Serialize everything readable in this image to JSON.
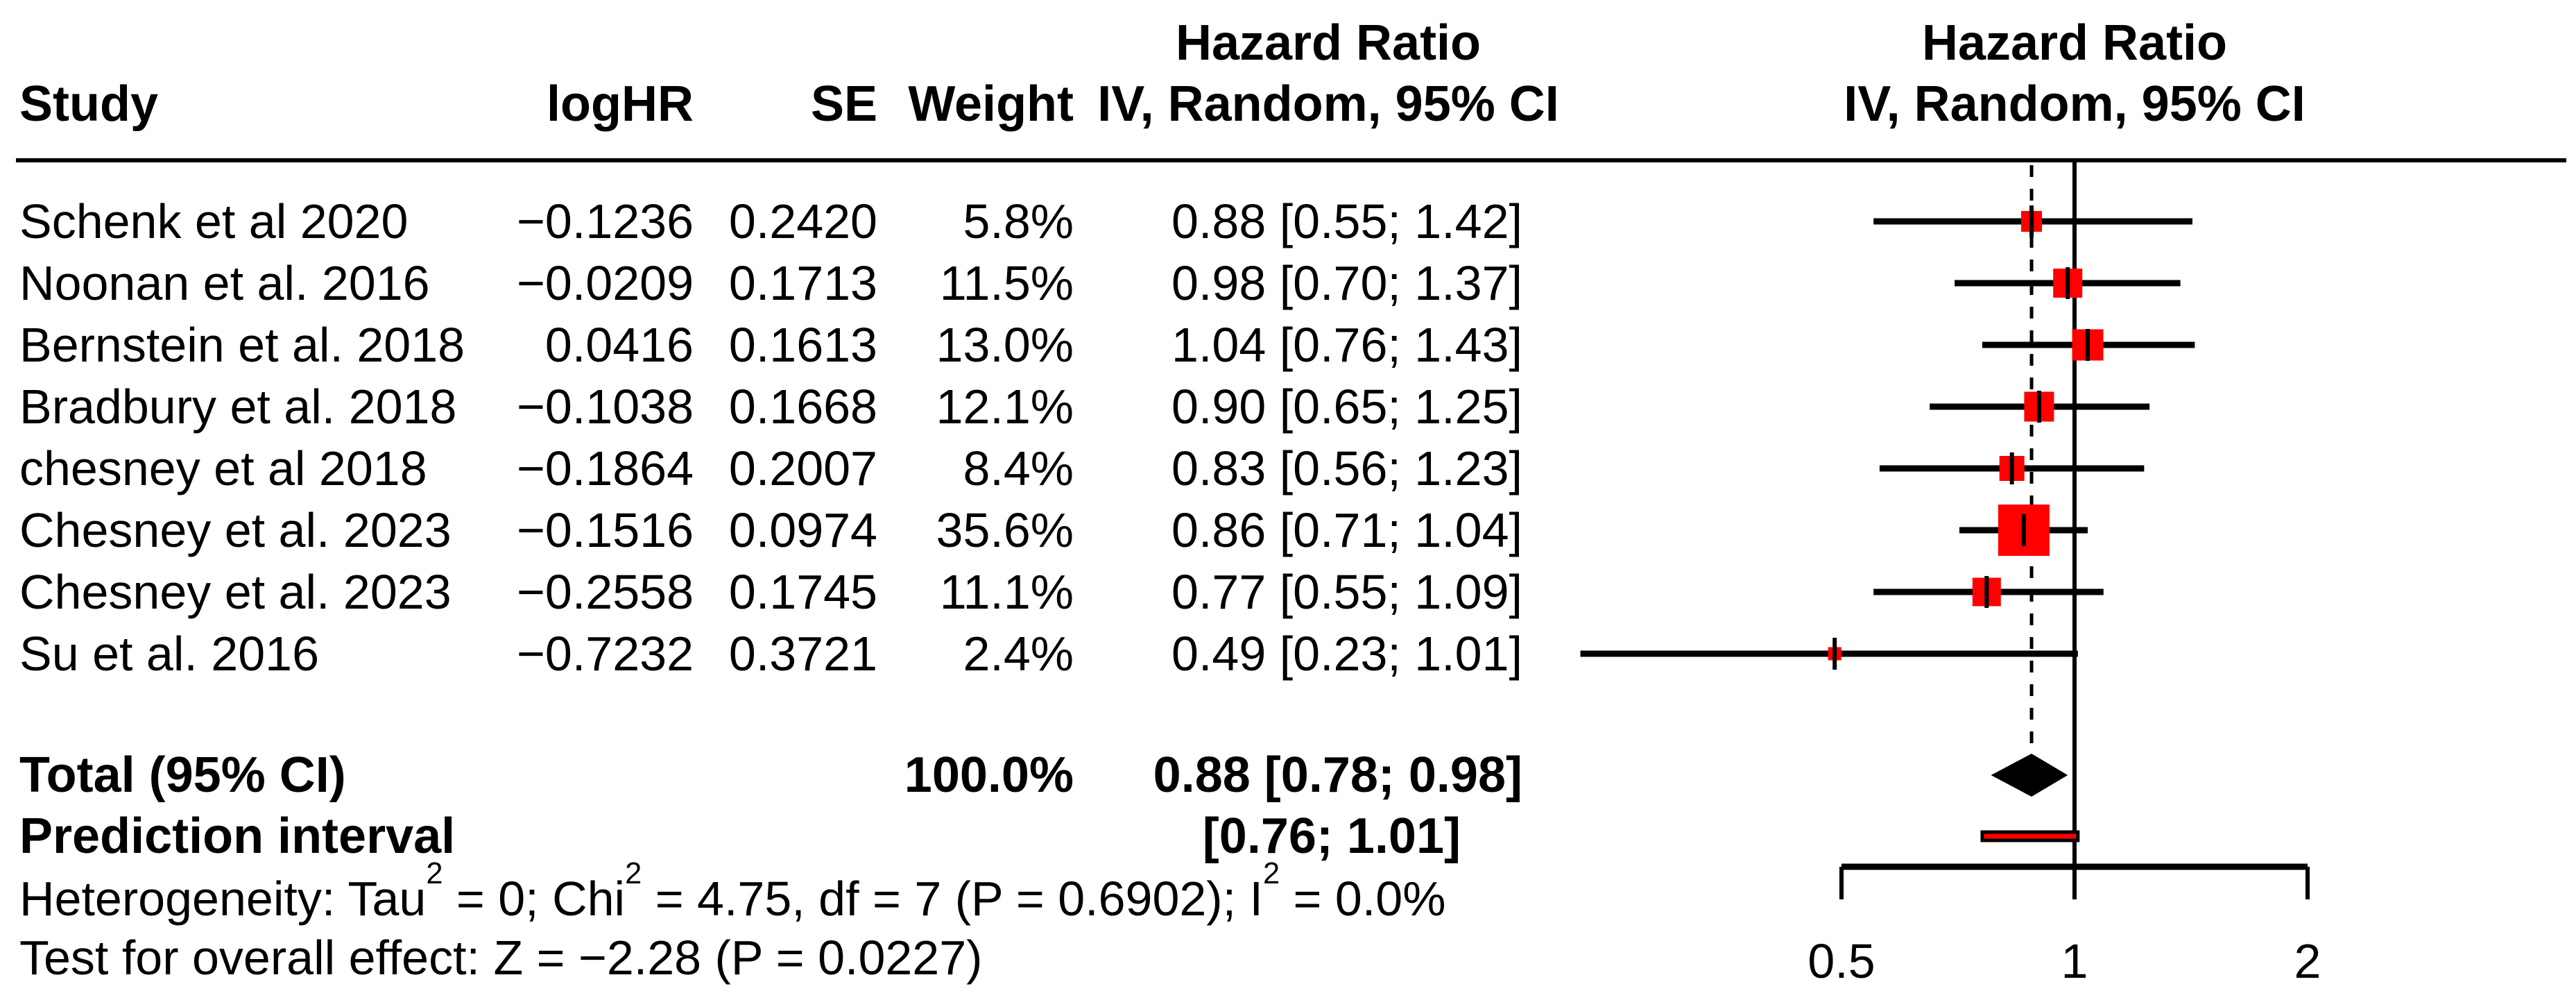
{
  "table": {
    "effect_header": "Hazard Ratio",
    "model_header": "IV, Random, 95% CI",
    "columns": {
      "study": "Study",
      "loghr": "logHR",
      "se": "SE",
      "weight": "Weight",
      "ci": "IV, Random, 95% CI"
    }
  },
  "colors": {
    "square": "#FF0000",
    "prediction_bar_fill": "#FF0000",
    "line": "#000000",
    "diamond": "#000000",
    "text": "#000000"
  },
  "chart_data": {
    "type": "forest",
    "effect_measure": "Hazard Ratio",
    "model": "IV, Random, 95% CI",
    "x_scale": "log",
    "axis_ticks": [
      0.5,
      1,
      2
    ],
    "axis_tick_labels": [
      "0.5",
      "1",
      "2"
    ],
    "reference_line": 1,
    "studies": [
      {
        "name": "Schenk et al 2020",
        "loghr": "−0.1236",
        "se": "0.2420",
        "weight_pct": 5.8,
        "weight": "5.8%",
        "hr": 0.88,
        "ci_low": 0.55,
        "ci_high": 1.42,
        "ci_text": "0.88 [0.55; 1.42]"
      },
      {
        "name": "Noonan et al. 2016",
        "loghr": "−0.0209",
        "se": "0.1713",
        "weight_pct": 11.5,
        "weight": "11.5%",
        "hr": 0.98,
        "ci_low": 0.7,
        "ci_high": 1.37,
        "ci_text": "0.98 [0.70; 1.37]"
      },
      {
        "name": "Bernstein et al. 2018",
        "loghr": "0.0416",
        "se": "0.1613",
        "weight_pct": 13.0,
        "weight": "13.0%",
        "hr": 1.04,
        "ci_low": 0.76,
        "ci_high": 1.43,
        "ci_text": "1.04 [0.76; 1.43]"
      },
      {
        "name": "Bradbury et al. 2018",
        "loghr": "−0.1038",
        "se": "0.1668",
        "weight_pct": 12.1,
        "weight": "12.1%",
        "hr": 0.9,
        "ci_low": 0.65,
        "ci_high": 1.25,
        "ci_text": "0.90 [0.65; 1.25]"
      },
      {
        "name": "chesney et al 2018",
        "loghr": "−0.1864",
        "se": "0.2007",
        "weight_pct": 8.4,
        "weight": "8.4%",
        "hr": 0.83,
        "ci_low": 0.56,
        "ci_high": 1.23,
        "ci_text": "0.83 [0.56; 1.23]"
      },
      {
        "name": "Chesney et al. 2023",
        "loghr": "−0.1516",
        "se": "0.0974",
        "weight_pct": 35.6,
        "weight": "35.6%",
        "hr": 0.86,
        "ci_low": 0.71,
        "ci_high": 1.04,
        "ci_text": "0.86 [0.71; 1.04]"
      },
      {
        "name": "Chesney et al. 2023",
        "loghr": "−0.2558",
        "se": "0.1745",
        "weight_pct": 11.1,
        "weight": "11.1%",
        "hr": 0.77,
        "ci_low": 0.55,
        "ci_high": 1.09,
        "ci_text": "0.77 [0.55; 1.09]"
      },
      {
        "name": "Su et al. 2016",
        "loghr": "−0.7232",
        "se": "0.3721",
        "weight_pct": 2.4,
        "weight": "2.4%",
        "hr": 0.49,
        "ci_low": 0.23,
        "ci_high": 1.01,
        "ci_text": "0.49 [0.23; 1.01]"
      }
    ],
    "total": {
      "label": "Total (95% CI)",
      "weight": "100.0%",
      "ci_text": "0.88 [0.78; 0.98]",
      "hr": 0.88,
      "ci_low": 0.78,
      "ci_high": 0.98
    },
    "prediction": {
      "label": "Prediction interval",
      "ci_text": "[0.76; 1.01]",
      "ci_low": 0.76,
      "ci_high": 1.01
    },
    "heterogeneity_parts": [
      {
        "t": "Heterogeneity: Tau"
      },
      {
        "t": "2",
        "sup": true
      },
      {
        "t": " = 0; Chi"
      },
      {
        "t": "2",
        "sup": true
      },
      {
        "t": " = 4.75, df = 7 (P = 0.6902); I"
      },
      {
        "t": "2",
        "sup": true
      },
      {
        "t": " = 0.0%"
      }
    ],
    "overall_test": "Test for overall effect: Z = −2.28 (P = 0.0227)"
  }
}
